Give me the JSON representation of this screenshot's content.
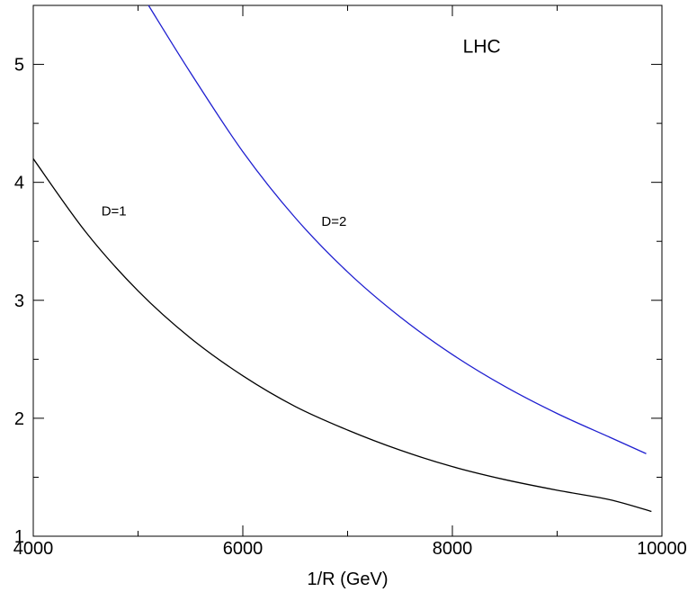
{
  "chart_data": {
    "type": "line",
    "xlabel": "1/R (GeV)",
    "ylabel": "",
    "xlim": [
      4000,
      10000
    ],
    "ylim": [
      1,
      5.5
    ],
    "x_ticks": [
      4000,
      6000,
      8000,
      10000
    ],
    "x_tick_labels": [
      "4000",
      "6000",
      "8000",
      "10000"
    ],
    "x_minor_step": 1000,
    "y_ticks": [
      1,
      2,
      3,
      4,
      5
    ],
    "y_tick_labels": [
      "1",
      "2",
      "3",
      "4",
      "5"
    ],
    "y_minor_step": 0.5,
    "grid": false,
    "series": [
      {
        "name": "D=1",
        "color": "#000000",
        "x": [
          4000,
          4500,
          5000,
          5500,
          6000,
          6500,
          7000,
          7500,
          8000,
          8500,
          9000,
          9500,
          9900
        ],
        "y": [
          4.2,
          3.58,
          3.08,
          2.68,
          2.36,
          2.1,
          1.9,
          1.73,
          1.59,
          1.48,
          1.39,
          1.31,
          1.21
        ]
      },
      {
        "name": "D=2",
        "color": "#1f1fd0",
        "x": [
          5100,
          5500,
          6000,
          6500,
          7000,
          7500,
          8000,
          8500,
          9000,
          9500,
          9850
        ],
        "y": [
          5.5,
          4.93,
          4.26,
          3.7,
          3.24,
          2.86,
          2.54,
          2.27,
          2.04,
          1.84,
          1.7
        ]
      }
    ],
    "annotations": [
      {
        "text": "LHC",
        "x": 8100,
        "y": 5.1,
        "size": "large"
      },
      {
        "text": "D=1",
        "x": 4650,
        "y": 3.72,
        "size": "small"
      },
      {
        "text": "D=2",
        "x": 6750,
        "y": 3.63,
        "size": "small"
      }
    ]
  }
}
